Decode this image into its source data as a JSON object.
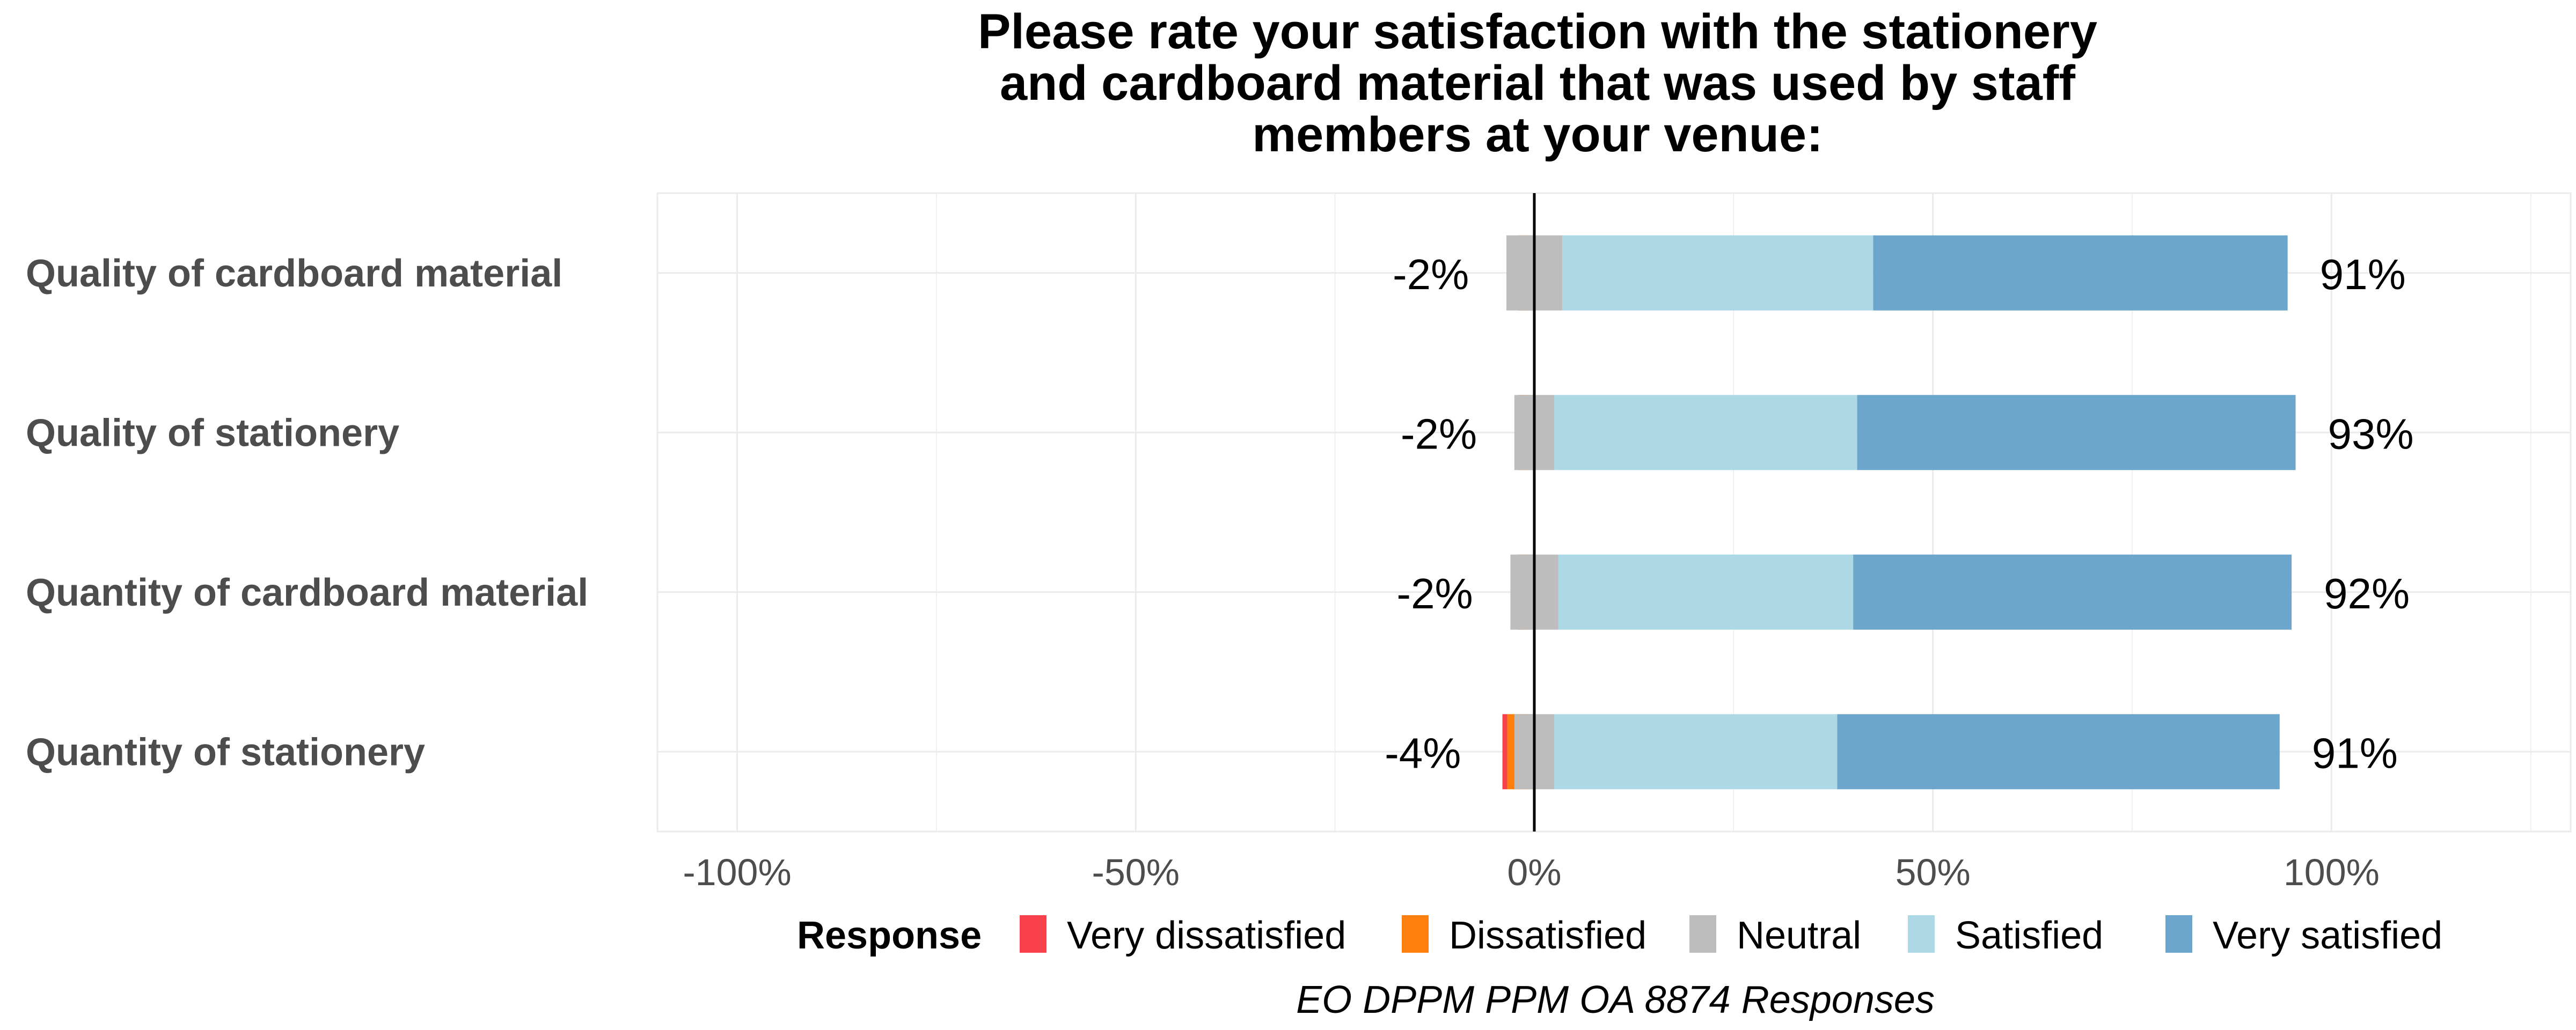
{
  "chart_data": {
    "type": "bar",
    "orientation": "horizontal",
    "stacked": "diverging",
    "title": "Please rate your satisfaction with the stationery and cardboard material that was used by staff members at your venue:",
    "title_lines": [
      "Please rate your satisfaction with the stationery",
      "and cardboard material that was used by staff",
      "members at your venue:"
    ],
    "categories": [
      "Quality of cardboard material",
      "Quality of stationery",
      "Quantity of cardboard material",
      "Quantity of stationery"
    ],
    "series": [
      {
        "name": "Very dissatisfied",
        "color": "#f8414a",
        "values": [
          -0.3,
          -0.3,
          -0.3,
          -0.6
        ]
      },
      {
        "name": "Dissatisfied",
        "color": "#ff7f0e",
        "values": [
          -1.7,
          -1.7,
          -1.7,
          -3.4
        ]
      },
      {
        "name": "Neutral",
        "color": "#bdbdbd",
        "values": [
          7,
          5,
          6,
          5
        ]
      },
      {
        "name": "Satisfied",
        "color": "#add8e6",
        "values": [
          39,
          38,
          37,
          35.5
        ]
      },
      {
        "name": "Very satisfied",
        "color": "#6ca6cd",
        "values": [
          52,
          55,
          55,
          55.5
        ]
      }
    ],
    "left_labels": [
      "-2%",
      "-2%",
      "-2%",
      "-4%"
    ],
    "right_labels": [
      "91%",
      "93%",
      "92%",
      "91%"
    ],
    "xlim": [
      -110,
      130
    ],
    "xticks": [
      -100,
      -50,
      0,
      50,
      100
    ],
    "xtick_labels": [
      "-100%",
      "-50%",
      "0%",
      "50%",
      "100%"
    ],
    "grid": true,
    "legend": {
      "title": "Response",
      "position": "bottom",
      "entries": [
        "Very dissatisfied",
        "Dissatisfied",
        "Neutral",
        "Satisfied",
        "Very satisfied"
      ]
    },
    "caption": "EO DPPM PPM OA 8874 Responses"
  }
}
